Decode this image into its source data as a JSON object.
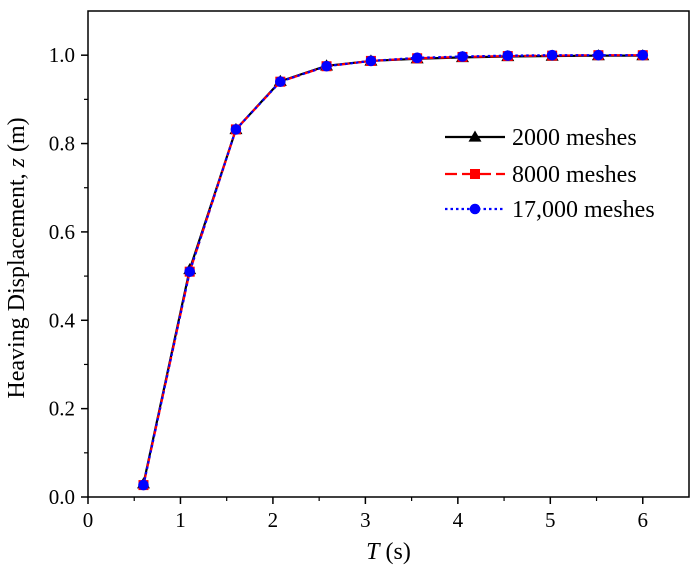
{
  "chart_data": {
    "type": "line",
    "title": "",
    "xlabel_var": "T",
    "xlabel_unit": " (s)",
    "ylabel_prefix": "Heaving Displacement, ",
    "ylabel_var": "z",
    "ylabel_unit": " (m)",
    "xlim": [
      0,
      6.5
    ],
    "ylim": [
      0,
      1.1
    ],
    "xticks": [
      0,
      1,
      2,
      3,
      4,
      5,
      6
    ],
    "xtick_labels": [
      "0",
      "1",
      "2",
      "3",
      "4",
      "5",
      "6"
    ],
    "yticks": [
      0,
      0.2,
      0.4,
      0.6,
      0.8,
      1.0
    ],
    "ytick_labels": [
      "0.0",
      "0.2",
      "0.4",
      "0.6",
      "0.8",
      "1.0"
    ],
    "grid": false,
    "legend_position": "right-middle",
    "series": [
      {
        "name": "2000 meshes",
        "color": "#000000",
        "marker": "triangle",
        "line_style": "solid",
        "x": [
          0.6,
          1.1,
          1.6,
          2.08,
          2.58,
          3.06,
          3.56,
          4.05,
          4.54,
          5.02,
          5.52,
          6.0
        ],
        "y": [
          0.03,
          0.515,
          0.832,
          0.941,
          0.976,
          0.987,
          0.992,
          0.995,
          0.997,
          0.998,
          0.999,
          0.999
        ]
      },
      {
        "name": "8000 meshes",
        "color": "#ff0000",
        "marker": "square",
        "line_style": "dashed",
        "x": [
          0.6,
          1.1,
          1.6,
          2.08,
          2.58,
          3.06,
          3.56,
          4.05,
          4.54,
          5.02,
          5.52,
          6.0
        ],
        "y": [
          0.027,
          0.51,
          0.832,
          0.94,
          0.975,
          0.987,
          0.993,
          0.996,
          0.998,
          0.999,
          1.0,
          1.0
        ]
      },
      {
        "name": "17,000 meshes",
        "color": "#0000ff",
        "marker": "circle",
        "line_style": "dotted",
        "x": [
          0.6,
          1.1,
          1.6,
          2.08,
          2.58,
          3.06,
          3.56,
          4.05,
          4.54,
          5.02,
          5.52,
          6.0
        ],
        "y": [
          0.027,
          0.51,
          0.832,
          0.94,
          0.975,
          0.987,
          0.994,
          0.997,
          0.999,
          1.0,
          1.0,
          1.0
        ]
      }
    ]
  }
}
